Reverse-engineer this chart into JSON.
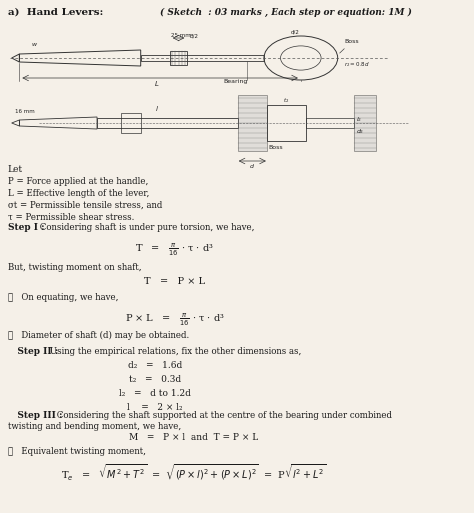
{
  "title_left": "a)  Hand Levers:",
  "title_right": "( Sketch  : 03 marks , Each step or equation: 1M )",
  "bg_color": "#f5f0e8",
  "text_color": "#1a1a1a",
  "let_lines": [
    "Let",
    "P = Force applied at the handle,",
    "L = Effective length of the lever,",
    "σt = Permissible tensile stress, and",
    "τ = Permissible shear stress."
  ],
  "step1_label": "Step I :",
  "step1_text": " Considering shaft is under pure torsion, we have,",
  "eq1": "T   =   π/16 · τ · d³",
  "but_text": "But, twisting moment on shaft,",
  "eq2": "T   =   P × L",
  "therefore1": "∴   On equating, we have,",
  "eq3": "P × L   =   π/16 · τ · d³",
  "therefore2": "∴   Diameter of shaft (d) may be obtained.",
  "step2_label": "Step II :",
  "step2_text": " Using the empirical relations, fix the other dimensions as,",
  "emp_relations": [
    "d₂   =   1.6d",
    "t₂   =   0.3d",
    "l₂   =   d to 1.2d",
    "l    =   2 × l₂"
  ],
  "step3_label": "Step III :",
  "step3_text": " Considering the shaft supported at the centre of the bearing under combined twisting and bending moment, we have,",
  "eq4": "M   =   P × l  and  T = P × L",
  "therefore3": "∴   Equivalent twisting moment,",
  "eq5": "Tₑ   =   √(M² + T²)  =  √((P × l)² + (P × L)²)  =  P√(l² + L²)"
}
